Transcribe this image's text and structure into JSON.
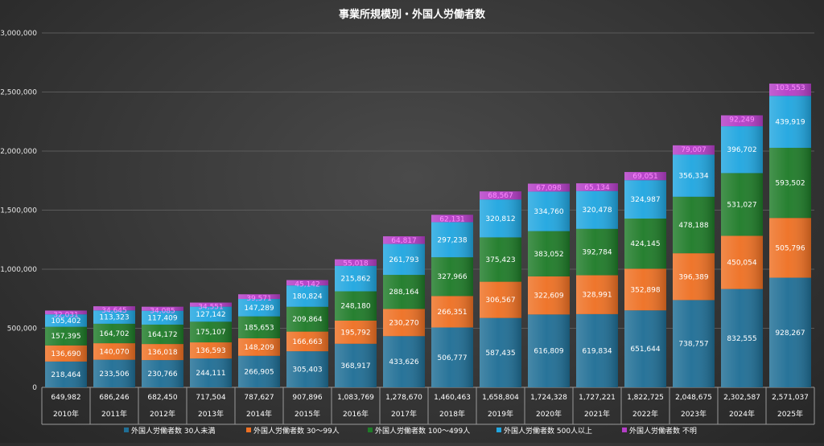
{
  "chart_data": {
    "type": "bar",
    "stacked": true,
    "title": "事業所規模別・外国人労働者数",
    "categories": [
      "2010年",
      "2011年",
      "2012年",
      "2013年",
      "2014年",
      "2015年",
      "2016年",
      "2017年",
      "2018年",
      "2019年",
      "2020年",
      "2021年",
      "2022年",
      "2023年",
      "2024年",
      "2025年"
    ],
    "ylim": [
      0,
      3000000
    ],
    "yticks": [
      0,
      500000,
      1000000,
      1500000,
      2000000,
      2500000,
      3000000
    ],
    "ytick_labels": [
      "0",
      "500,000",
      "1,000,000",
      "1,500,000",
      "2,000,000",
      "2,500,000",
      "3,000,000"
    ],
    "grid": true,
    "legend_position": "bottom",
    "series": [
      {
        "name": "外国人労働者数 30人未満",
        "color": "#1f6e95",
        "values": [
          218464,
          233506,
          230766,
          244111,
          266905,
          305403,
          368917,
          433626,
          506777,
          587435,
          616809,
          619834,
          651644,
          738757,
          832555,
          928267
        ]
      },
      {
        "name": "外国人労働者数 30〜99人",
        "color": "#ee7023",
        "values": [
          136690,
          140070,
          136018,
          136593,
          148209,
          166663,
          195792,
          230270,
          266351,
          306567,
          322609,
          328991,
          352898,
          396389,
          450054,
          505796
        ]
      },
      {
        "name": "外国人労働者数 100〜499人",
        "color": "#1e7b28",
        "values": [
          157395,
          164702,
          164172,
          175107,
          185653,
          209864,
          248180,
          288164,
          327966,
          375423,
          383052,
          392784,
          424145,
          478188,
          531027,
          593502
        ]
      },
      {
        "name": "外国人労働者数 500人以上",
        "color": "#20a6e0",
        "values": [
          105402,
          113323,
          117409,
          127142,
          147289,
          180824,
          215862,
          261793,
          297238,
          320812,
          334760,
          320478,
          324987,
          356334,
          396702,
          439919
        ]
      },
      {
        "name": "外国人労働者数 不明",
        "color": "#b43ec7",
        "values": [
          32031,
          34645,
          34085,
          34551,
          39571,
          45142,
          55018,
          64817,
          62131,
          68567,
          67098,
          65134,
          69051,
          79007,
          92249,
          103553
        ]
      }
    ],
    "data_labels": [
      [
        "218,464",
        "233,506",
        "230,766",
        "244,111",
        "266,905",
        "305,403",
        "368,917",
        "433,626",
        "506,777",
        "587,435",
        "616,809",
        "619,834",
        "651,644",
        "738,757",
        "832,555",
        "928,267"
      ],
      [
        "136,690",
        "140,070",
        "136,018",
        "136,593",
        "148,209",
        "166,663",
        "195,792",
        "230,270",
        "266,351",
        "306,567",
        "322,609",
        "328,991",
        "352,898",
        "396,389",
        "450,054",
        "505,796"
      ],
      [
        "157,395",
        "164,702",
        "164,172",
        "175,107",
        "185,653",
        "209,864",
        "248,180",
        "288,164",
        "327,966",
        "375,423",
        "383,052",
        "392,784",
        "424,145",
        "478,188",
        "531,027",
        "593,502"
      ],
      [
        "105,402",
        "113,323",
        "117,409",
        "127,142",
        "147,289",
        "180,824",
        "215,862",
        "261,793",
        "297,238",
        "320,812",
        "334,760",
        "320,478",
        "324,987",
        "356,334",
        "396,702",
        "439,919"
      ],
      [
        "32,031",
        "34,645",
        "34,085",
        "34,551",
        "39,571",
        "45,142",
        "55,018",
        "64,817",
        "62,131",
        "68,567",
        "67,098",
        "65,134",
        "69,051",
        "79,007",
        "92,249",
        "103,553"
      ]
    ],
    "totals": [
      649982,
      686246,
      682450,
      717504,
      787627,
      907896,
      1083769,
      1278670,
      1460463,
      1658804,
      1724328,
      1727221,
      1822725,
      2048675,
      2302587,
      2571037
    ],
    "total_labels": [
      "649,982",
      "686,246",
      "682,450",
      "717,504",
      "787,627",
      "907,896",
      "1,083,769",
      "1,278,670",
      "1,460,463",
      "1,658,804",
      "1,724,328",
      "1,727,221",
      "1,822,725",
      "2,048,675",
      "2,302,587",
      "2,571,037"
    ]
  }
}
